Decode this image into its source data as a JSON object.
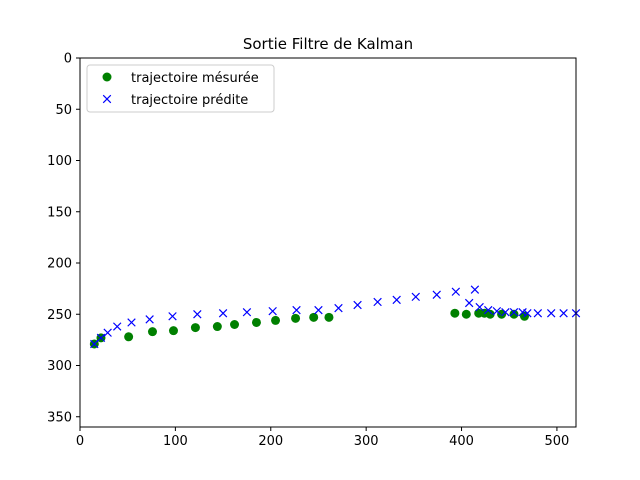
{
  "chart_data": {
    "type": "scatter",
    "title": "Sortie Filtre de Kalman",
    "xlabel": "",
    "ylabel": "",
    "xlim": [
      0,
      520
    ],
    "ylim": [
      360,
      0
    ],
    "y_inverted": true,
    "x_ticks": [
      0,
      100,
      200,
      300,
      400,
      500
    ],
    "y_ticks": [
      0,
      50,
      100,
      150,
      200,
      250,
      300,
      350
    ],
    "grid": false,
    "legend_position": "top-left",
    "series": [
      {
        "name": "trajectoire mésurée",
        "marker": "circle",
        "color": "#008000",
        "x": [
          15,
          22,
          51,
          76,
          98,
          121,
          144,
          162,
          185,
          205,
          226,
          245,
          261,
          393,
          405,
          418,
          424,
          430,
          442,
          455,
          466
        ],
        "y": [
          279,
          273,
          272,
          267,
          266,
          263,
          262,
          260,
          258,
          256,
          254,
          253,
          253,
          249,
          250,
          249,
          249,
          250,
          250,
          250,
          252
        ]
      },
      {
        "name": "trajectoire prédite",
        "marker": "x",
        "color": "#0000ff",
        "x": [
          15,
          22,
          29,
          39,
          54,
          73,
          97,
          123,
          150,
          175,
          202,
          227,
          250,
          271,
          291,
          312,
          332,
          352,
          374,
          394,
          408,
          414,
          419,
          428,
          437,
          446,
          455,
          464,
          469,
          480,
          494,
          507,
          520
        ],
        "y": [
          279,
          273,
          268,
          262,
          258,
          255,
          252,
          250,
          249,
          248,
          247,
          246,
          246,
          244,
          241,
          238,
          236,
          233,
          231,
          228,
          239,
          226,
          243,
          246,
          247,
          248,
          248,
          248,
          249,
          249,
          249,
          249,
          249
        ]
      }
    ]
  }
}
